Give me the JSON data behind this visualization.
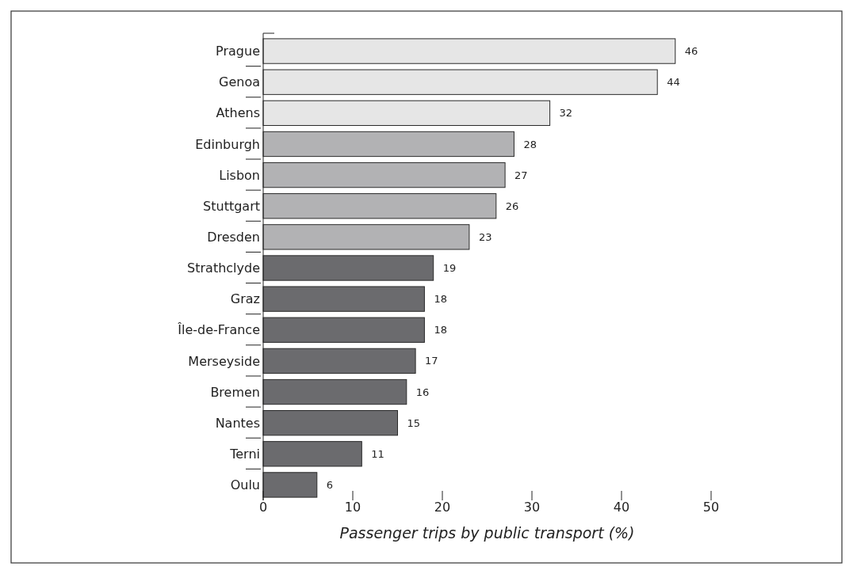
{
  "chart_data": {
    "type": "bar",
    "orientation": "horizontal",
    "xlabel": "Passenger trips by public transport (%)",
    "categories": [
      "Prague",
      "Genoa",
      "Athens",
      "Edinburgh",
      "Lisbon",
      "Stuttgart",
      "Dresden",
      "Strathclyde",
      "Graz",
      "Île-de-France",
      "Merseyside",
      "Bremen",
      "Nantes",
      "Terni",
      "Oulu"
    ],
    "values": [
      46,
      44,
      32,
      28,
      27,
      26,
      23,
      19,
      18,
      18,
      17,
      16,
      15,
      11,
      6
    ],
    "colors": [
      "#e6e6e6",
      "#e6e6e6",
      "#e6e6e6",
      "#b2b2b4",
      "#b2b2b4",
      "#b2b2b4",
      "#b2b2b4",
      "#6b6b6e",
      "#6b6b6e",
      "#6b6b6e",
      "#6b6b6e",
      "#6b6b6e",
      "#6b6b6e",
      "#6b6b6e",
      "#6b6b6e"
    ],
    "xlim": [
      0,
      50
    ],
    "xticks": [
      0,
      10,
      20,
      30,
      40,
      50
    ],
    "data_labels": true,
    "grid": false
  }
}
